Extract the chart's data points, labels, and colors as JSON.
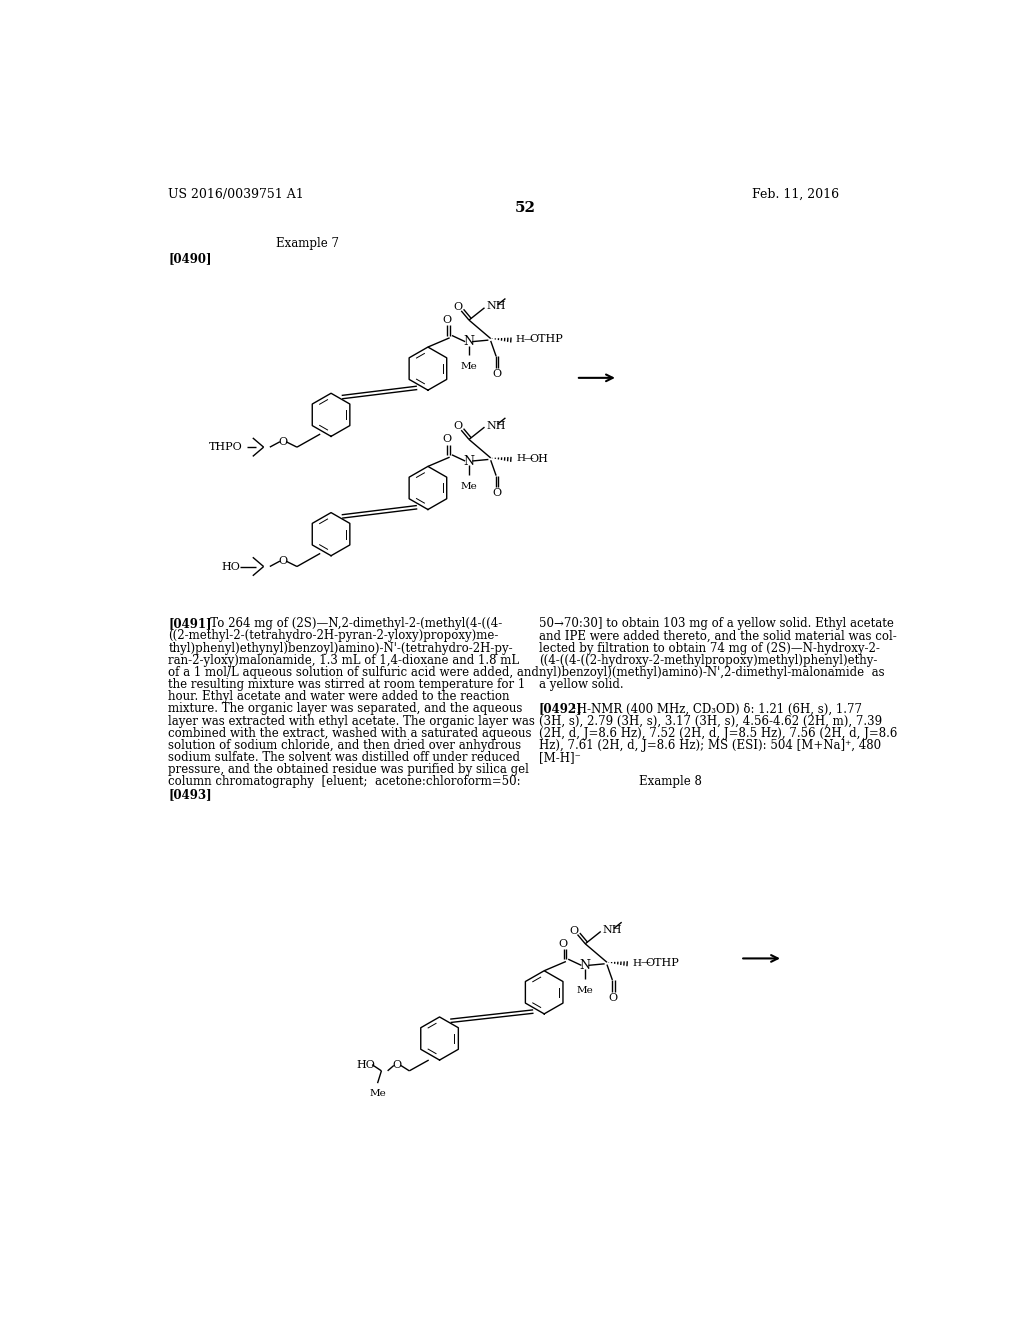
{
  "background_color": "#ffffff",
  "page_number": "52",
  "header_left": "US 2016/0039751 A1",
  "header_right": "Feb. 11, 2016",
  "example7_label": "Example 7",
  "para0490": "[0490]",
  "example8_label": "Example 8",
  "para0493": "[0493]"
}
